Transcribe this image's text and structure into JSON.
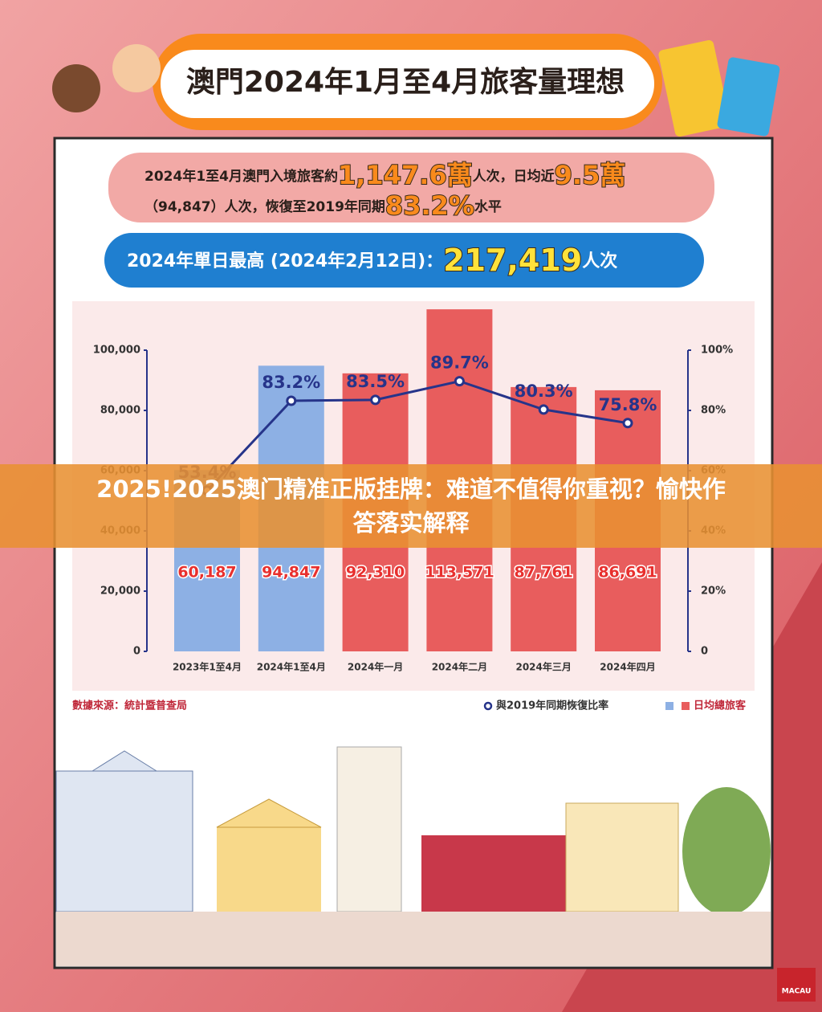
{
  "header": {
    "title": "澳門2024年1月至4月旅客量理想"
  },
  "summary": {
    "text1": "2024年1至4月澳門入境旅客約",
    "total": "1,147.6萬",
    "text2": "人次，日均近",
    "daily": "9.5萬",
    "text3": "（94,847）人次，恢復至2019年同期",
    "ratio": "83.2%",
    "text4": "水平"
  },
  "record": {
    "text": "2024年單日最高 (2024年2月12日)：",
    "value": "217,419",
    "unit": "人次"
  },
  "banner": {
    "line1": "2025!2025澳门精准正版挂牌：难道不值得你重视？愉快作",
    "line2": "答落实解释"
  },
  "logo": "MACAU",
  "chart_data": {
    "type": "bar",
    "categories": [
      "2023年1至4月",
      "2024年1至4月",
      "2024年一月",
      "2024年二月",
      "2024年三月",
      "2024年四月"
    ],
    "series": [
      {
        "name": "日均總旅客",
        "type": "bar",
        "colors": [
          "#8db0e4",
          "#8db0e4",
          "#e85d5d",
          "#e85d5d",
          "#e85d5d",
          "#e85d5d"
        ],
        "values": [
          60187,
          94847,
          92310,
          113571,
          87761,
          86691
        ],
        "value_labels": [
          "60,187",
          "94,847",
          "92,310",
          "113,571",
          "87,761",
          "86,691"
        ]
      },
      {
        "name": "與2019年同期恢復比率",
        "type": "line",
        "axis": "y2",
        "color": "#26348a",
        "values": [
          53.4,
          83.2,
          83.5,
          89.7,
          80.3,
          75.8
        ],
        "value_labels": [
          "53.4%",
          "83.2%",
          "83.5%",
          "89.7%",
          "80.3%",
          "75.8%"
        ]
      }
    ],
    "ylim": [
      0,
      100000
    ],
    "yticks": [
      0,
      {
        "value": 20000,
        "label": "20,000"
      },
      {
        "value": 40000,
        "label": "40,000"
      },
      {
        "value": 60000,
        "label": "60,000"
      },
      {
        "value": 80000,
        "label": "80,000"
      },
      {
        "value": 100000,
        "label": "100,000"
      }
    ],
    "y2lim": [
      0,
      100
    ],
    "y2ticks": [
      0,
      {
        "value": 20,
        "label": "20%"
      },
      {
        "value": 40,
        "label": "40%"
      },
      {
        "value": 60,
        "label": "60%"
      },
      {
        "value": 80,
        "label": "80%"
      },
      {
        "value": 100,
        "label": "100%"
      }
    ],
    "legend": "bottom-right",
    "source": "數據來源：統計暨普查局"
  }
}
